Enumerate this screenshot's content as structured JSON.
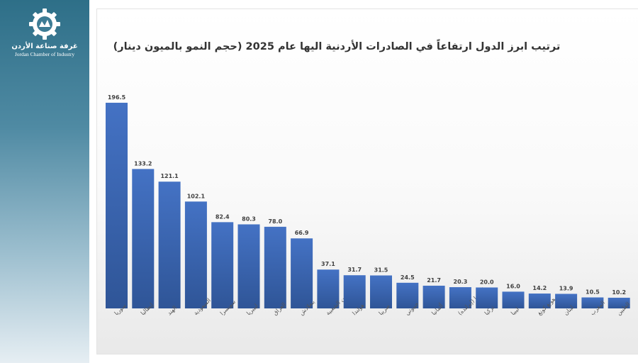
{
  "logo": {
    "arabic": "غرفة صناعة الأردن",
    "english": "Jordan Chamber of Industry",
    "icon": "gear-logo-icon"
  },
  "colors": {
    "bar": "#4472c4",
    "bar_dark": "#2f5597",
    "label": "#404040",
    "tick": "#555555"
  },
  "chart_data": {
    "type": "bar",
    "title": "ترتيب ابرز الدول ارتفاعاً في الصادرات الأردنية اليها عام 2025 (حجم النمو بالميون دينار)",
    "xlabel": "",
    "ylabel": "",
    "ylim": [
      0,
      210
    ],
    "grid": false,
    "categories": [
      "سوريا",
      "إيطاليا",
      "الهند",
      "السعودية",
      "سويسرا",
      "ليبيريا",
      "العراق",
      "بنغلادش",
      "الصين الشعبية",
      "هولندا",
      "صربيا",
      "جيبوتي",
      "ألمانيا",
      "إيرلندا (إيرلنده)",
      "تركيا",
      "ليبيا",
      "هونغ كونغ",
      "لبنان",
      "المغرب",
      "الفلبين"
    ],
    "values": [
      196.5,
      133.2,
      121.1,
      102.1,
      82.4,
      80.3,
      78.0,
      66.9,
      37.1,
      31.7,
      31.5,
      24.5,
      21.7,
      20.3,
      20.0,
      16.0,
      14.2,
      13.9,
      10.5,
      10.2
    ],
    "value_labels": [
      "196.5",
      "133.2",
      "121.1",
      "102.1",
      "82.4",
      "80.3",
      "78.0",
      "66.9",
      "37.1",
      "31.7",
      "31.5",
      "24.5",
      "21.7",
      "20.3",
      "20.0",
      "16.0",
      "14.2",
      "13.9",
      "10.5",
      "10.2"
    ]
  }
}
